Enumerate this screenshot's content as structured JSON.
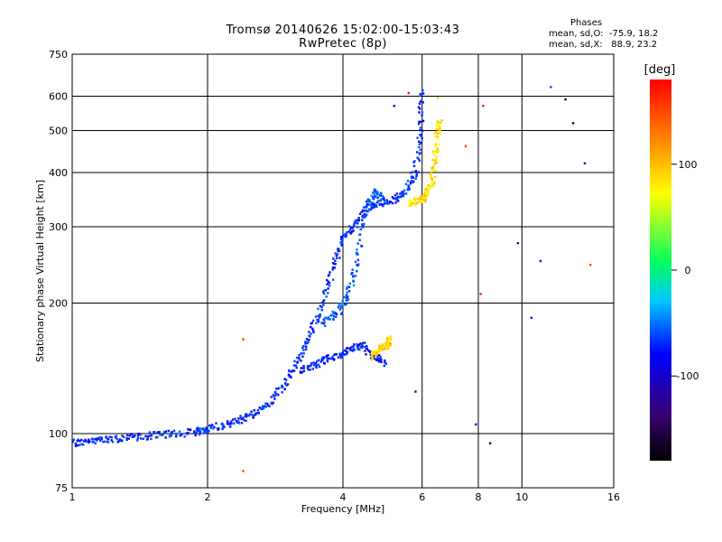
{
  "chart_data": {
    "type": "scatter",
    "title": "Tromsø 20140626 15:02:00-15:03:43",
    "subtitle": "RwPretec (8p)",
    "xlabel": "Frequency [MHz]",
    "ylabel": "Stationary phase Virtual Height [km]",
    "x_scale": "log",
    "y_scale": "log",
    "xlim": [
      1,
      16
    ],
    "ylim": [
      75,
      750
    ],
    "x_ticks": [
      "1",
      "2",
      "4",
      "6",
      "8",
      "10",
      "16"
    ],
    "y_ticks": [
      "75",
      "100",
      "200",
      "300",
      "400",
      "500",
      "600",
      "750"
    ],
    "grid": true,
    "phases_box": {
      "title": "Phases",
      "line_o": "mean, sd,O:  -75.9, 18.2",
      "line_x": "mean, sd,X:   88.9, 23.2"
    },
    "colorbar": {
      "label": "[deg]",
      "tick_labels": [
        "100",
        "0",
        "-100"
      ],
      "ticks": [
        100,
        0,
        -100
      ],
      "range": [
        -180,
        180
      ]
    },
    "traces": [
      {
        "points": [
          [
            1.0,
            95
          ],
          [
            1.1,
            96
          ],
          [
            1.2,
            97
          ],
          [
            1.35,
            98
          ],
          [
            1.5,
            99
          ],
          [
            1.7,
            100
          ],
          [
            1.9,
            101
          ],
          [
            2.0,
            102
          ],
          [
            2.2,
            105
          ],
          [
            2.4,
            108
          ],
          [
            2.6,
            112
          ],
          [
            2.8,
            120
          ],
          [
            3.0,
            132
          ],
          [
            3.2,
            150
          ],
          [
            3.4,
            170
          ],
          [
            3.6,
            200
          ],
          [
            3.8,
            240
          ],
          [
            4.0,
            280
          ],
          [
            4.2,
            300
          ],
          [
            4.5,
            330
          ],
          [
            4.8,
            340
          ],
          [
            5.2,
            345
          ],
          [
            5.5,
            360
          ],
          [
            5.8,
            400
          ],
          [
            5.95,
            500
          ],
          [
            6.0,
            620
          ]
        ],
        "phase": -85
      },
      {
        "points": [
          [
            3.2,
            140
          ],
          [
            3.5,
            145
          ],
          [
            3.8,
            150
          ],
          [
            4.1,
            155
          ],
          [
            4.4,
            160
          ],
          [
            4.7,
            150
          ],
          [
            5.0,
            145
          ]
        ],
        "phase": -90
      },
      {
        "points": [
          [
            3.6,
            180
          ],
          [
            3.9,
            190
          ],
          [
            4.1,
            210
          ],
          [
            4.3,
            250
          ],
          [
            4.5,
            330
          ],
          [
            4.7,
            360
          ],
          [
            4.9,
            350
          ]
        ],
        "phase": -70
      },
      {
        "points": [
          [
            5.6,
            340
          ],
          [
            5.9,
            345
          ],
          [
            6.1,
            350
          ],
          [
            6.3,
            380
          ],
          [
            6.4,
            430
          ],
          [
            6.5,
            500
          ],
          [
            6.55,
            530
          ]
        ],
        "phase": 90
      },
      {
        "points": [
          [
            4.6,
            150
          ],
          [
            4.8,
            155
          ],
          [
            5.0,
            160
          ],
          [
            5.1,
            165
          ]
        ],
        "phase": 95
      }
    ],
    "scatter_points": [
      {
        "x": 2.4,
        "y": 165,
        "phase": 155
      },
      {
        "x": 2.4,
        "y": 82,
        "phase": 150
      },
      {
        "x": 5.2,
        "y": 570,
        "phase": -95
      },
      {
        "x": 5.6,
        "y": 610,
        "phase": 175
      },
      {
        "x": 6.5,
        "y": 595,
        "phase": 100
      },
      {
        "x": 8.2,
        "y": 570,
        "phase": 170
      },
      {
        "x": 9.8,
        "y": 275,
        "phase": -120
      },
      {
        "x": 12.5,
        "y": 590,
        "phase": -160
      },
      {
        "x": 13.0,
        "y": 520,
        "phase": -175
      },
      {
        "x": 13.8,
        "y": 420,
        "phase": -130
      },
      {
        "x": 14.2,
        "y": 245,
        "phase": 150
      },
      {
        "x": 8.5,
        "y": 95,
        "phase": -160
      },
      {
        "x": 7.9,
        "y": 105,
        "phase": -110
      },
      {
        "x": 11.0,
        "y": 250,
        "phase": -105
      },
      {
        "x": 8.1,
        "y": 210,
        "phase": 165
      },
      {
        "x": 5.8,
        "y": 125,
        "phase": -140
      },
      {
        "x": 10.5,
        "y": 185,
        "phase": -100
      },
      {
        "x": 7.5,
        "y": 460,
        "phase": 160
      },
      {
        "x": 11.6,
        "y": 630,
        "phase": -70
      }
    ]
  }
}
